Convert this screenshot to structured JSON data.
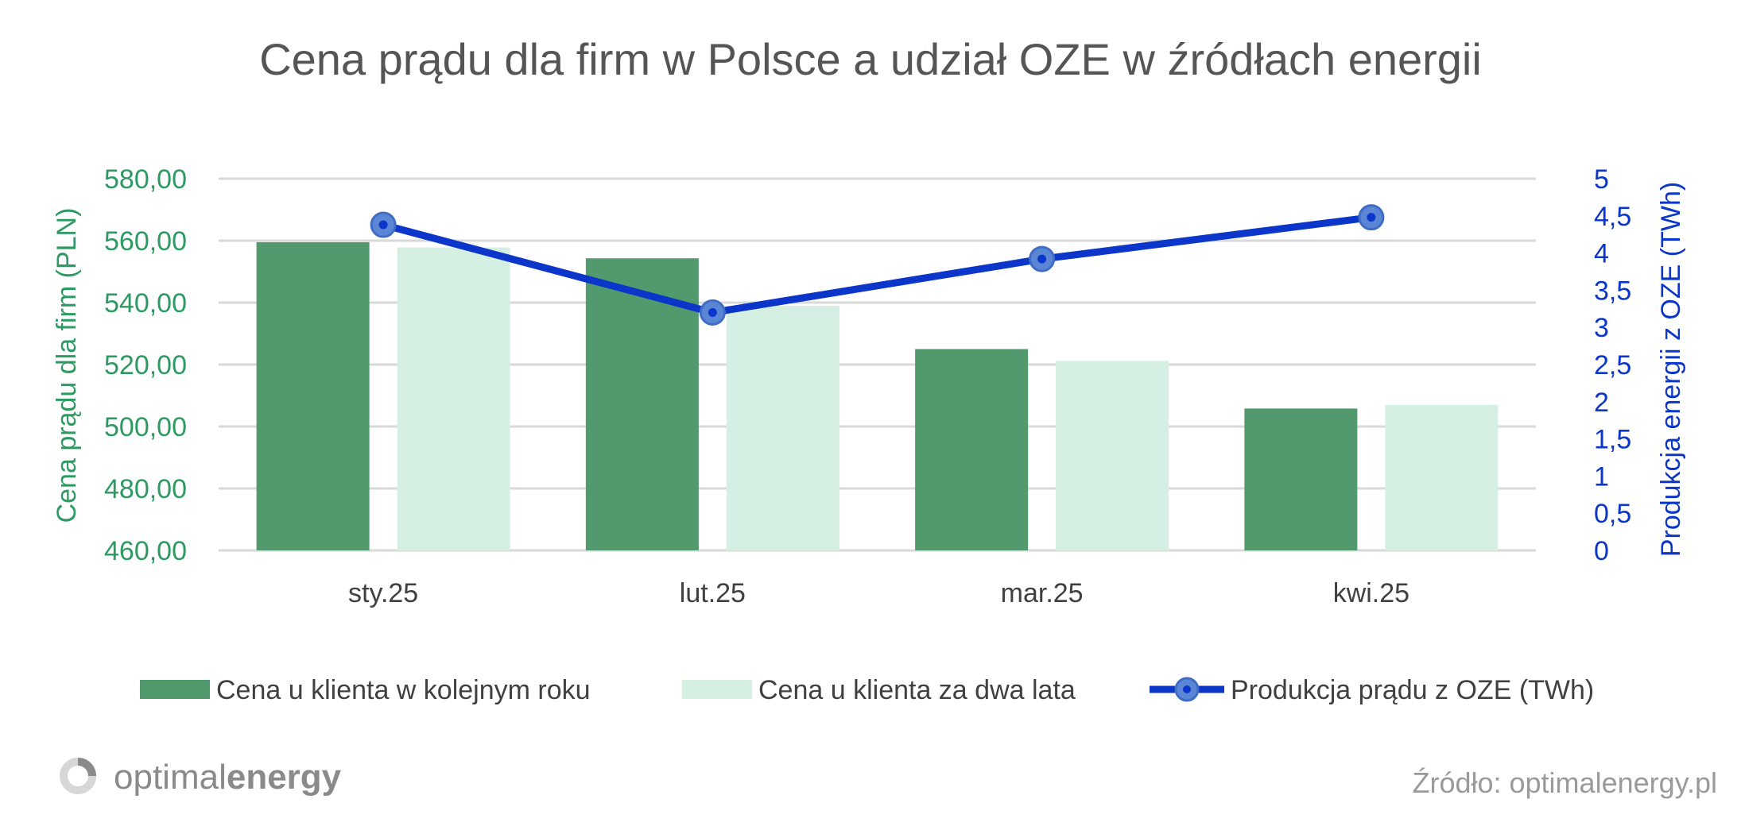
{
  "chart_data": {
    "type": "bar",
    "title": "Cena prądu dla firm w Polsce a udział OZE w źródłach energii",
    "categories": [
      "sty.25",
      "lut.25",
      "mar.25",
      "kwi.25"
    ],
    "series": [
      {
        "name": "Cena u klienta w kolejnym roku",
        "type": "bar",
        "axis": "left",
        "color": "#529a6d",
        "values": [
          559.5,
          554.3,
          525.0,
          505.8
        ]
      },
      {
        "name": "Cena u klienta za dwa lata",
        "type": "bar",
        "axis": "left",
        "color": "#d5efe2",
        "values": [
          557.8,
          539.0,
          521.2,
          507.0
        ]
      },
      {
        "name": "Produkcja prądu z OZE (TWh)",
        "type": "line",
        "axis": "right",
        "color": "#0b36c9",
        "marker_color": "#5b86d6",
        "values": [
          4.38,
          3.2,
          3.92,
          4.48
        ]
      }
    ],
    "y_left": {
      "label": "Cena prądu dla firm (PLN)",
      "ylim": [
        460,
        580
      ],
      "ticks": [
        460,
        480,
        500,
        520,
        540,
        560,
        580
      ],
      "tick_labels": [
        "460,00",
        "480,00",
        "500,00",
        "520,00",
        "540,00",
        "560,00",
        "580,00"
      ],
      "color": "#2e9a63"
    },
    "y_right": {
      "label": "Produkcja energii z OZE (TWh)",
      "ylim": [
        0,
        5
      ],
      "ticks": [
        0,
        0.5,
        1,
        1.5,
        2,
        2.5,
        3,
        3.5,
        4,
        4.5,
        5
      ],
      "tick_labels": [
        "0",
        "0,5",
        "1",
        "1,5",
        "2",
        "2,5",
        "3",
        "3,5",
        "4",
        "4,5",
        "5"
      ],
      "color": "#0b36c9"
    },
    "grid": true,
    "legend_position": "bottom"
  },
  "branding": {
    "logo_text_light": "optimal",
    "logo_text_bold": "energy",
    "source": "Źródło: optimalenergy.pl"
  }
}
